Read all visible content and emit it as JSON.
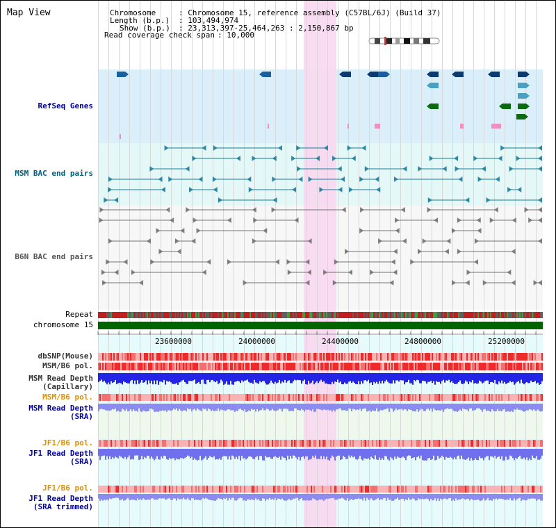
{
  "view_title": "Map View",
  "header": {
    "chromosome_label": "Chromosome",
    "chromosome_value": "Chromosome 15, reference assembly (C57BL/6J) (Build 37)",
    "length_label": "Length (b.p.)",
    "length_value": "103,494,974",
    "show_label": "Show (b.p.)",
    "show_value": "23,313,397-25,464,263 : 2,150,867 bp",
    "coverage_label": "Read coverage check span",
    "coverage_value": "10,000"
  },
  "tracks": {
    "refseq": "RefSeq Genes",
    "msm_bac": "MSM BAC end pairs",
    "b6n_bac": "B6N BAC end pairs",
    "repeat": "Repeat",
    "chromosome": "chromosome 15",
    "dbsnp": "dbSNP(Mouse)",
    "msm_pol1": "MSM/B6 pol.",
    "msm_read_depth_cap": "MSM Read Depth\n(Capillary)",
    "msm_pol2": "MSM/B6 pol.",
    "msm_read_depth_sra": "MSM Read Depth\n(SRA)",
    "jf1_pol1": "JF1/B6 pol.",
    "jf1_read_depth_sra": "JF1 Read Depth\n(SRA)",
    "jf1_pol2": "JF1/B6 pol.",
    "jf1_read_depth_trim": "JF1 Read Depth\n(SRA trimmed)"
  },
  "axis_ticks": [
    "23600000",
    "24000000",
    "24400000",
    "24800000",
    "25200000"
  ],
  "colors": {
    "refseq_bg": "#dbeffa",
    "msm_bg": "#e2f8f8",
    "b6n_bg": "#f6f6f6",
    "highlight": "#f8d8f0",
    "chrom_green": "#006400",
    "depth_blue": "#2020e0",
    "depth_light": "#8080f0",
    "pol_red": "#ee3030"
  }
}
